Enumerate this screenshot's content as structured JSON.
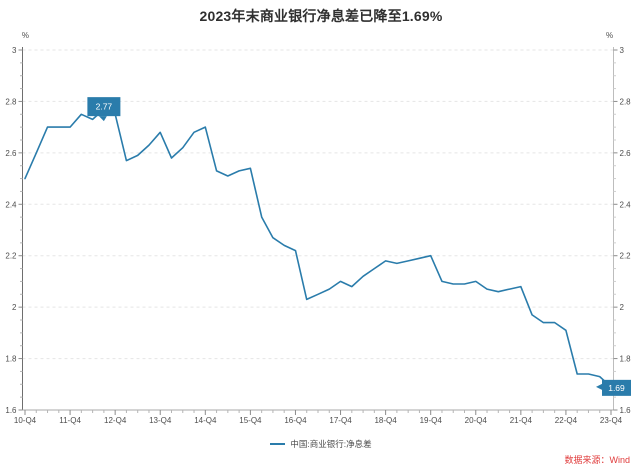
{
  "title": "2023年末商业银行净息差已降至1.69%",
  "source_note": "数据来源：Wind",
  "legend": {
    "label": "中国:商业银行:净息差"
  },
  "colors": {
    "line": "#2a7cab",
    "annotation_bg": "#2a7cab",
    "annotation_text": "#ffffff",
    "grid": "#e5e5e5",
    "axis": "#8c8c8c",
    "tick_label": "#4d4d4d",
    "source_text": "#e03b3b"
  },
  "chart_data": {
    "type": "line",
    "title": "2023年末商业银行净息差已降至1.69%",
    "y_unit": "%",
    "ylim": [
      1.6,
      3.0
    ],
    "y_ticks": [
      "3",
      "2.8",
      "2.6",
      "2.4",
      "2.2",
      "2",
      "1.8",
      "1.6"
    ],
    "y_minor_step": 0.05,
    "grid": "horizontal-dashed",
    "legend_position": "bottom-center",
    "dual_y_axis": true,
    "x_tick_labels": [
      "10-Q4",
      "11-Q4",
      "12-Q4",
      "13-Q4",
      "14-Q4",
      "15-Q4",
      "16-Q4",
      "17-Q4",
      "18-Q4",
      "19-Q4",
      "20-Q4",
      "21-Q4",
      "22-Q4",
      "23-Q4"
    ],
    "categories": [
      "10-Q4",
      "11-Q1",
      "11-Q2",
      "11-Q3",
      "11-Q4",
      "12-Q1",
      "12-Q2",
      "12-Q3",
      "12-Q4",
      "13-Q1",
      "13-Q2",
      "13-Q3",
      "13-Q4",
      "14-Q1",
      "14-Q2",
      "14-Q3",
      "14-Q4",
      "15-Q1",
      "15-Q2",
      "15-Q3",
      "15-Q4",
      "16-Q1",
      "16-Q2",
      "16-Q3",
      "16-Q4",
      "17-Q1",
      "17-Q2",
      "17-Q3",
      "17-Q4",
      "18-Q1",
      "18-Q2",
      "18-Q3",
      "18-Q4",
      "19-Q1",
      "19-Q2",
      "19-Q3",
      "19-Q4",
      "20-Q1",
      "20-Q2",
      "20-Q3",
      "20-Q4",
      "21-Q1",
      "21-Q2",
      "21-Q3",
      "21-Q4",
      "22-Q1",
      "22-Q2",
      "22-Q3",
      "22-Q4",
      "23-Q1",
      "23-Q2",
      "23-Q3",
      "23-Q4"
    ],
    "series": [
      {
        "name": "中国:商业银行:净息差",
        "values": [
          2.5,
          2.6,
          2.7,
          2.7,
          2.7,
          2.75,
          2.73,
          2.77,
          2.75,
          2.57,
          2.59,
          2.63,
          2.68,
          2.58,
          2.62,
          2.68,
          2.7,
          2.53,
          2.51,
          2.53,
          2.54,
          2.35,
          2.27,
          2.24,
          2.22,
          2.03,
          2.05,
          2.07,
          2.1,
          2.08,
          2.12,
          2.15,
          2.18,
          2.17,
          2.18,
          2.19,
          2.2,
          2.1,
          2.09,
          2.09,
          2.1,
          2.07,
          2.06,
          2.07,
          2.08,
          1.97,
          1.94,
          1.94,
          1.91,
          1.74,
          1.74,
          1.73,
          1.69
        ]
      }
    ],
    "annotations": [
      {
        "category": "12-Q3",
        "value": 2.77,
        "label": "2.77"
      },
      {
        "category": "23-Q4",
        "value": 1.69,
        "label": "1.69"
      }
    ]
  }
}
